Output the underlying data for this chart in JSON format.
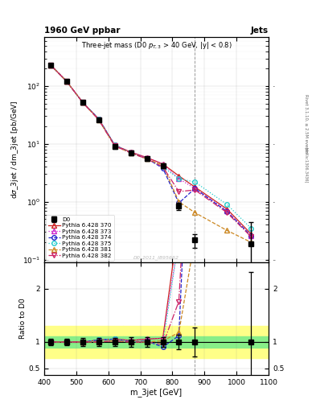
{
  "title_top": "1960 GeV ppbar",
  "title_top_right": "Jets",
  "plot_title": "Three-jet mass (D0 p_{T,3} > 40 GeV, |y| < 0.8)",
  "xlabel": "m_3jet [GeV]",
  "ylabel": "d#sigma_3jet / dm_3jet [pb/GeV]",
  "ylabel_ratio": "Ratio to D0",
  "watermark": "D0_2011_I895662",
  "right_label_top": "Rivet 3.1.10, ≥ 2.5M events",
  "right_label_bot": "[arXiv:1306.3436]",
  "xlim": [
    400,
    1100
  ],
  "ylim_main": [
    0.09,
    700
  ],
  "ylim_ratio": [
    0.38,
    2.5
  ],
  "xbins": [
    420,
    470,
    520,
    570,
    620,
    670,
    720,
    770,
    820,
    870,
    970,
    1045
  ],
  "xbins_width": [
    50,
    50,
    50,
    50,
    50,
    50,
    50,
    50,
    50,
    100,
    100,
    100
  ],
  "D0_y": [
    230,
    120,
    52,
    26,
    9.0,
    7.0,
    5.5,
    4.2,
    0.85,
    0.22,
    null,
    null
  ],
  "D0_yerr_lo": [
    15,
    8,
    4,
    2,
    0.7,
    0.6,
    0.5,
    0.4,
    0.12,
    0.06,
    null,
    null
  ],
  "D0_yerr_hi": [
    15,
    8,
    4,
    2,
    0.7,
    0.6,
    0.5,
    0.4,
    0.12,
    0.06,
    null,
    null
  ],
  "D0_last_y": 0.19,
  "D0_last_x": 1045,
  "D0_last_err_lo": 0.12,
  "D0_last_err_hi": 0.25,
  "py370_y": [
    230,
    120,
    52,
    27,
    9.5,
    7.2,
    5.8,
    4.5,
    2.8,
    1.8,
    0.75,
    0.28
  ],
  "py373_y": [
    230,
    120,
    52,
    27,
    9.5,
    7.2,
    5.8,
    4.5,
    2.5,
    1.7,
    0.7,
    0.26
  ],
  "py374_y": [
    230,
    120,
    52,
    27,
    9.5,
    7.0,
    5.6,
    3.8,
    0.95,
    1.7,
    0.68,
    0.26
  ],
  "py375_y": [
    230,
    120,
    52,
    27,
    9.5,
    7.0,
    5.5,
    4.0,
    2.5,
    2.2,
    0.9,
    0.35
  ],
  "py381_y": [
    230,
    120,
    52,
    26,
    9.2,
    7.0,
    5.5,
    4.3,
    1.0,
    0.65,
    0.32,
    0.2
  ],
  "py382_y": [
    230,
    120,
    52,
    26,
    9.2,
    7.0,
    5.5,
    4.0,
    1.5,
    1.6,
    0.65,
    0.25
  ],
  "colors": {
    "D0": "#000000",
    "py370": "#cc2222",
    "py373": "#cc22cc",
    "py374": "#2222cc",
    "py375": "#22cccc",
    "py381": "#cc8822",
    "py382": "#cc2266"
  },
  "bg_color": "#ffffff",
  "green_band": [
    0.9,
    1.1
  ],
  "yellow_band": [
    0.7,
    1.3
  ],
  "dashed_vline_x": 870,
  "ratio_yticks": [
    0.5,
    1.0,
    2.0
  ],
  "ratio_yticklabels": [
    "0.5",
    "1",
    "2"
  ]
}
